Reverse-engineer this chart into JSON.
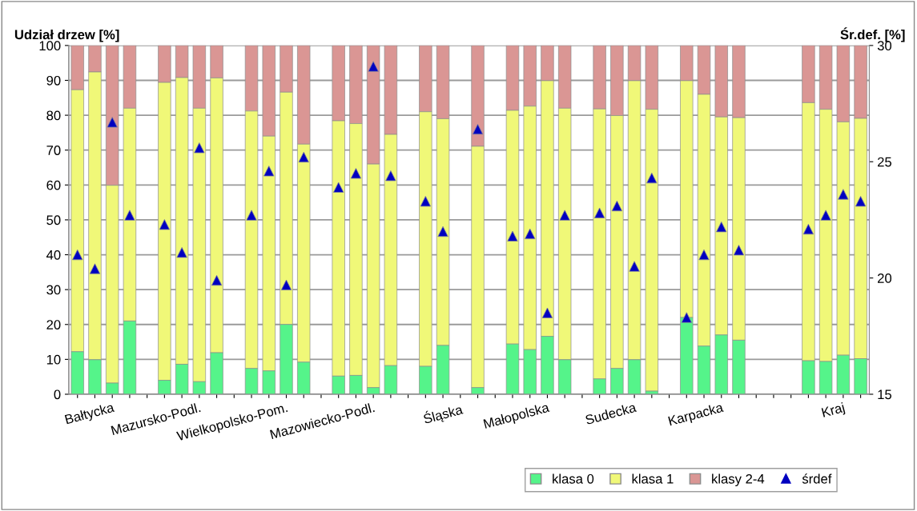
{
  "chart_data": {
    "type": "bar",
    "stacked": true,
    "ylabel": "Udział drzew [%]",
    "y2label": "Śr.def. [%]",
    "categories": [
      null,
      null,
      "Bałtycka",
      null,
      null,
      null,
      null,
      "Mazursko-Podl.",
      null,
      null,
      null,
      null,
      "Wielkopolsko-Pom.",
      null,
      null,
      null,
      null,
      "Mazowiecko-Podl.",
      null,
      null,
      null,
      null,
      "Śląska",
      null,
      null,
      null,
      null,
      "Małopolska",
      null,
      null,
      null,
      null,
      "Sudecka",
      null,
      null,
      null,
      null,
      "Karpacka",
      null,
      null,
      null,
      null,
      null,
      null,
      "Kraj",
      null
    ],
    "series": [
      {
        "name": "klasa 0",
        "color": "#55f48a",
        "values": [
          12.2,
          9.9,
          3.2,
          21.0,
          null,
          4.0,
          8.6,
          3.6,
          11.9,
          null,
          7.4,
          6.7,
          20.0,
          9.2,
          null,
          5.2,
          5.4,
          1.9,
          8.2,
          null,
          8.0,
          14.0,
          null,
          1.9,
          null,
          14.4,
          12.8,
          16.6,
          9.9,
          null,
          4.4,
          7.4,
          9.9,
          0.9,
          null,
          22.0,
          13.8,
          17.0,
          15.5,
          null,
          null,
          null,
          9.6,
          9.4,
          11.2,
          10.2
        ]
      },
      {
        "name": "klasa 1",
        "color": "#f0f878",
        "values": [
          75.1,
          82.5,
          56.7,
          61.0,
          null,
          85.4,
          82.2,
          78.4,
          78.8,
          null,
          73.8,
          67.3,
          66.6,
          62.5,
          null,
          73.2,
          72.2,
          64.1,
          66.3,
          null,
          73.0,
          65.0,
          null,
          69.2,
          null,
          67.0,
          69.8,
          73.3,
          72.1,
          null,
          77.4,
          72.5,
          80.0,
          80.8,
          null,
          67.9,
          72.2,
          62.5,
          63.8,
          null,
          null,
          null,
          74.0,
          72.3,
          66.9,
          68.9
        ]
      },
      {
        "name": "klasy 2-4",
        "color": "#da9694",
        "values": [
          12.7,
          7.6,
          40.1,
          18.0,
          null,
          10.6,
          9.2,
          18.0,
          9.3,
          null,
          18.8,
          26.0,
          13.4,
          28.3,
          null,
          21.6,
          22.4,
          34.0,
          25.5,
          null,
          19.0,
          21.0,
          null,
          28.9,
          null,
          18.6,
          17.4,
          10.1,
          18.0,
          null,
          18.2,
          20.1,
          10.1,
          18.3,
          null,
          10.1,
          14.0,
          20.5,
          20.7,
          null,
          null,
          null,
          16.4,
          18.3,
          21.9,
          20.9
        ]
      },
      {
        "name": "śrdef",
        "type": "scatter",
        "axis": "y2",
        "marker": "triangle",
        "color": "#0000c0",
        "values": [
          21.0,
          20.4,
          26.7,
          22.7,
          null,
          22.3,
          21.1,
          25.6,
          19.9,
          null,
          22.7,
          24.6,
          19.7,
          25.2,
          null,
          23.9,
          24.5,
          29.1,
          24.4,
          null,
          23.3,
          22.0,
          null,
          26.4,
          null,
          21.8,
          21.9,
          18.5,
          22.7,
          null,
          22.8,
          23.1,
          20.5,
          24.3,
          null,
          18.3,
          21.0,
          22.2,
          21.2,
          null,
          null,
          null,
          22.1,
          22.7,
          23.6,
          23.3
        ]
      }
    ],
    "ylim": [
      0,
      100
    ],
    "yticks": [
      0,
      10,
      20,
      30,
      40,
      50,
      60,
      70,
      80,
      90,
      100
    ],
    "y2lim": [
      15,
      30
    ],
    "y2ticks": [
      15,
      20,
      25,
      30
    ],
    "grid": "y",
    "legend": "bottom right"
  }
}
